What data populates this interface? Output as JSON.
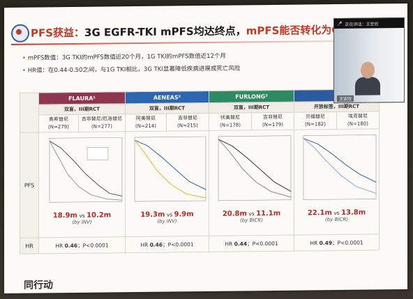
{
  "title": {
    "red": "PFS获益：",
    "black": "3G EGFR-TKI mPFS均达终点，",
    "red2": "mPFS能否转化为OS"
  },
  "bullets": [
    "mPFS数值：3G TKI的mPFS数值近20个月，1G TKI的mPFS数值近12个月",
    "HR值：在0.44-0.50之间，与1G TKI相比，3G TKI显著降低疾病进展或死亡风险"
  ],
  "video": {
    "bar_label": "正在讲话：王宏欣",
    "name": "王宏欣"
  },
  "row_label_pfs": "PFS",
  "row_label_hr": "HR",
  "trials": [
    {
      "name": "FLAURA¹",
      "design": "双盲，III期RCT",
      "arm1": "奥希替尼",
      "n1": "(N=279)",
      "arm2": "吉非替尼/厄洛替尼",
      "n2": "(N=277)",
      "med1": "18.9m",
      "med2": "10.2m",
      "vs": "vs",
      "assess": "(by INV)",
      "hr_label": "HR",
      "hr": "0.46",
      "p": "；P<0.0001"
    },
    {
      "name": "AENEAS²",
      "design": "双盲，III期RCT",
      "arm1": "阿美替尼",
      "n1": "(N=214)",
      "arm2": "吉非替尼",
      "n2": "(N=215)",
      "med1": "19.3m",
      "med2": "9.9m",
      "vs": "vs",
      "assess": "(by INV)",
      "hr_label": "HR",
      "hr": "0.46",
      "p": "；P<0.0001"
    },
    {
      "name": "FURLONG³",
      "design": "双盲，III期RCT",
      "arm1": "伏美替尼",
      "n1": "(N=178)",
      "arm2": "吉非替尼",
      "n2": "(N=179)",
      "med1": "20.8m",
      "med2": "11.1m",
      "vs": "vs",
      "assess": "(by BICR)",
      "hr_label": "HR",
      "hr": "0.44",
      "p": "；P<0.0001"
    },
    {
      "name": "",
      "design": "开放标签，III期RCT",
      "arm1": "贝福替尼",
      "n1": "(N=182)",
      "arm2": "埃克替尼",
      "n2": "(N=180)",
      "med1": "22.1m",
      "med2": "13.8m",
      "vs": "vs",
      "assess": "(by BICR)",
      "hr_label": "HR",
      "hr": "0.49",
      "p": "；P<0.0001"
    }
  ],
  "brand": "同行动",
  "colors": {
    "accent": "#c0392b",
    "flaura": "#8e3550",
    "aeneas": "#2d66b0",
    "furlong": "#2f8a63",
    "fourth": "#2c5aa0"
  }
}
